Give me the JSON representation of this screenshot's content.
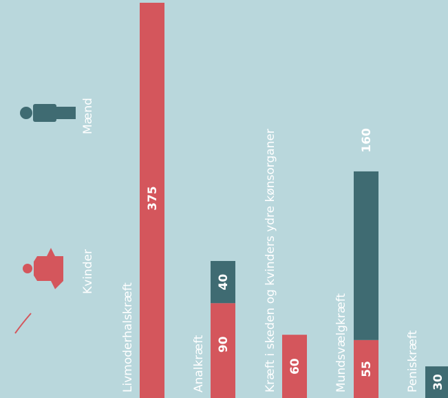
{
  "chart_data": {
    "type": "bar",
    "stacked": true,
    "orientation": "vertical",
    "categories": [
      "Livmoderhalskræft",
      "Analkræft",
      "Kræft i skeden og kvinders ydre kønsorganer",
      "Mundsvælgkræft",
      "Peniskræft"
    ],
    "series": [
      {
        "name": "Kvinder",
        "color": "#d4565c",
        "values": [
          375,
          90,
          60,
          55,
          null
        ]
      },
      {
        "name": "Mænd",
        "color": "#3f6b72",
        "values": [
          null,
          40,
          null,
          160,
          30
        ]
      }
    ],
    "legend": [
      {
        "label": "Kvinder",
        "icon": "female-figure-icon",
        "color": "#d4565c"
      },
      {
        "label": "Mænd",
        "icon": "male-figure-icon",
        "color": "#3f6b72"
      }
    ],
    "legend_position": "left",
    "text_rotation": "90deg counter-clockwise",
    "grid": false,
    "title": "",
    "xlabel": "",
    "ylabel": ""
  }
}
